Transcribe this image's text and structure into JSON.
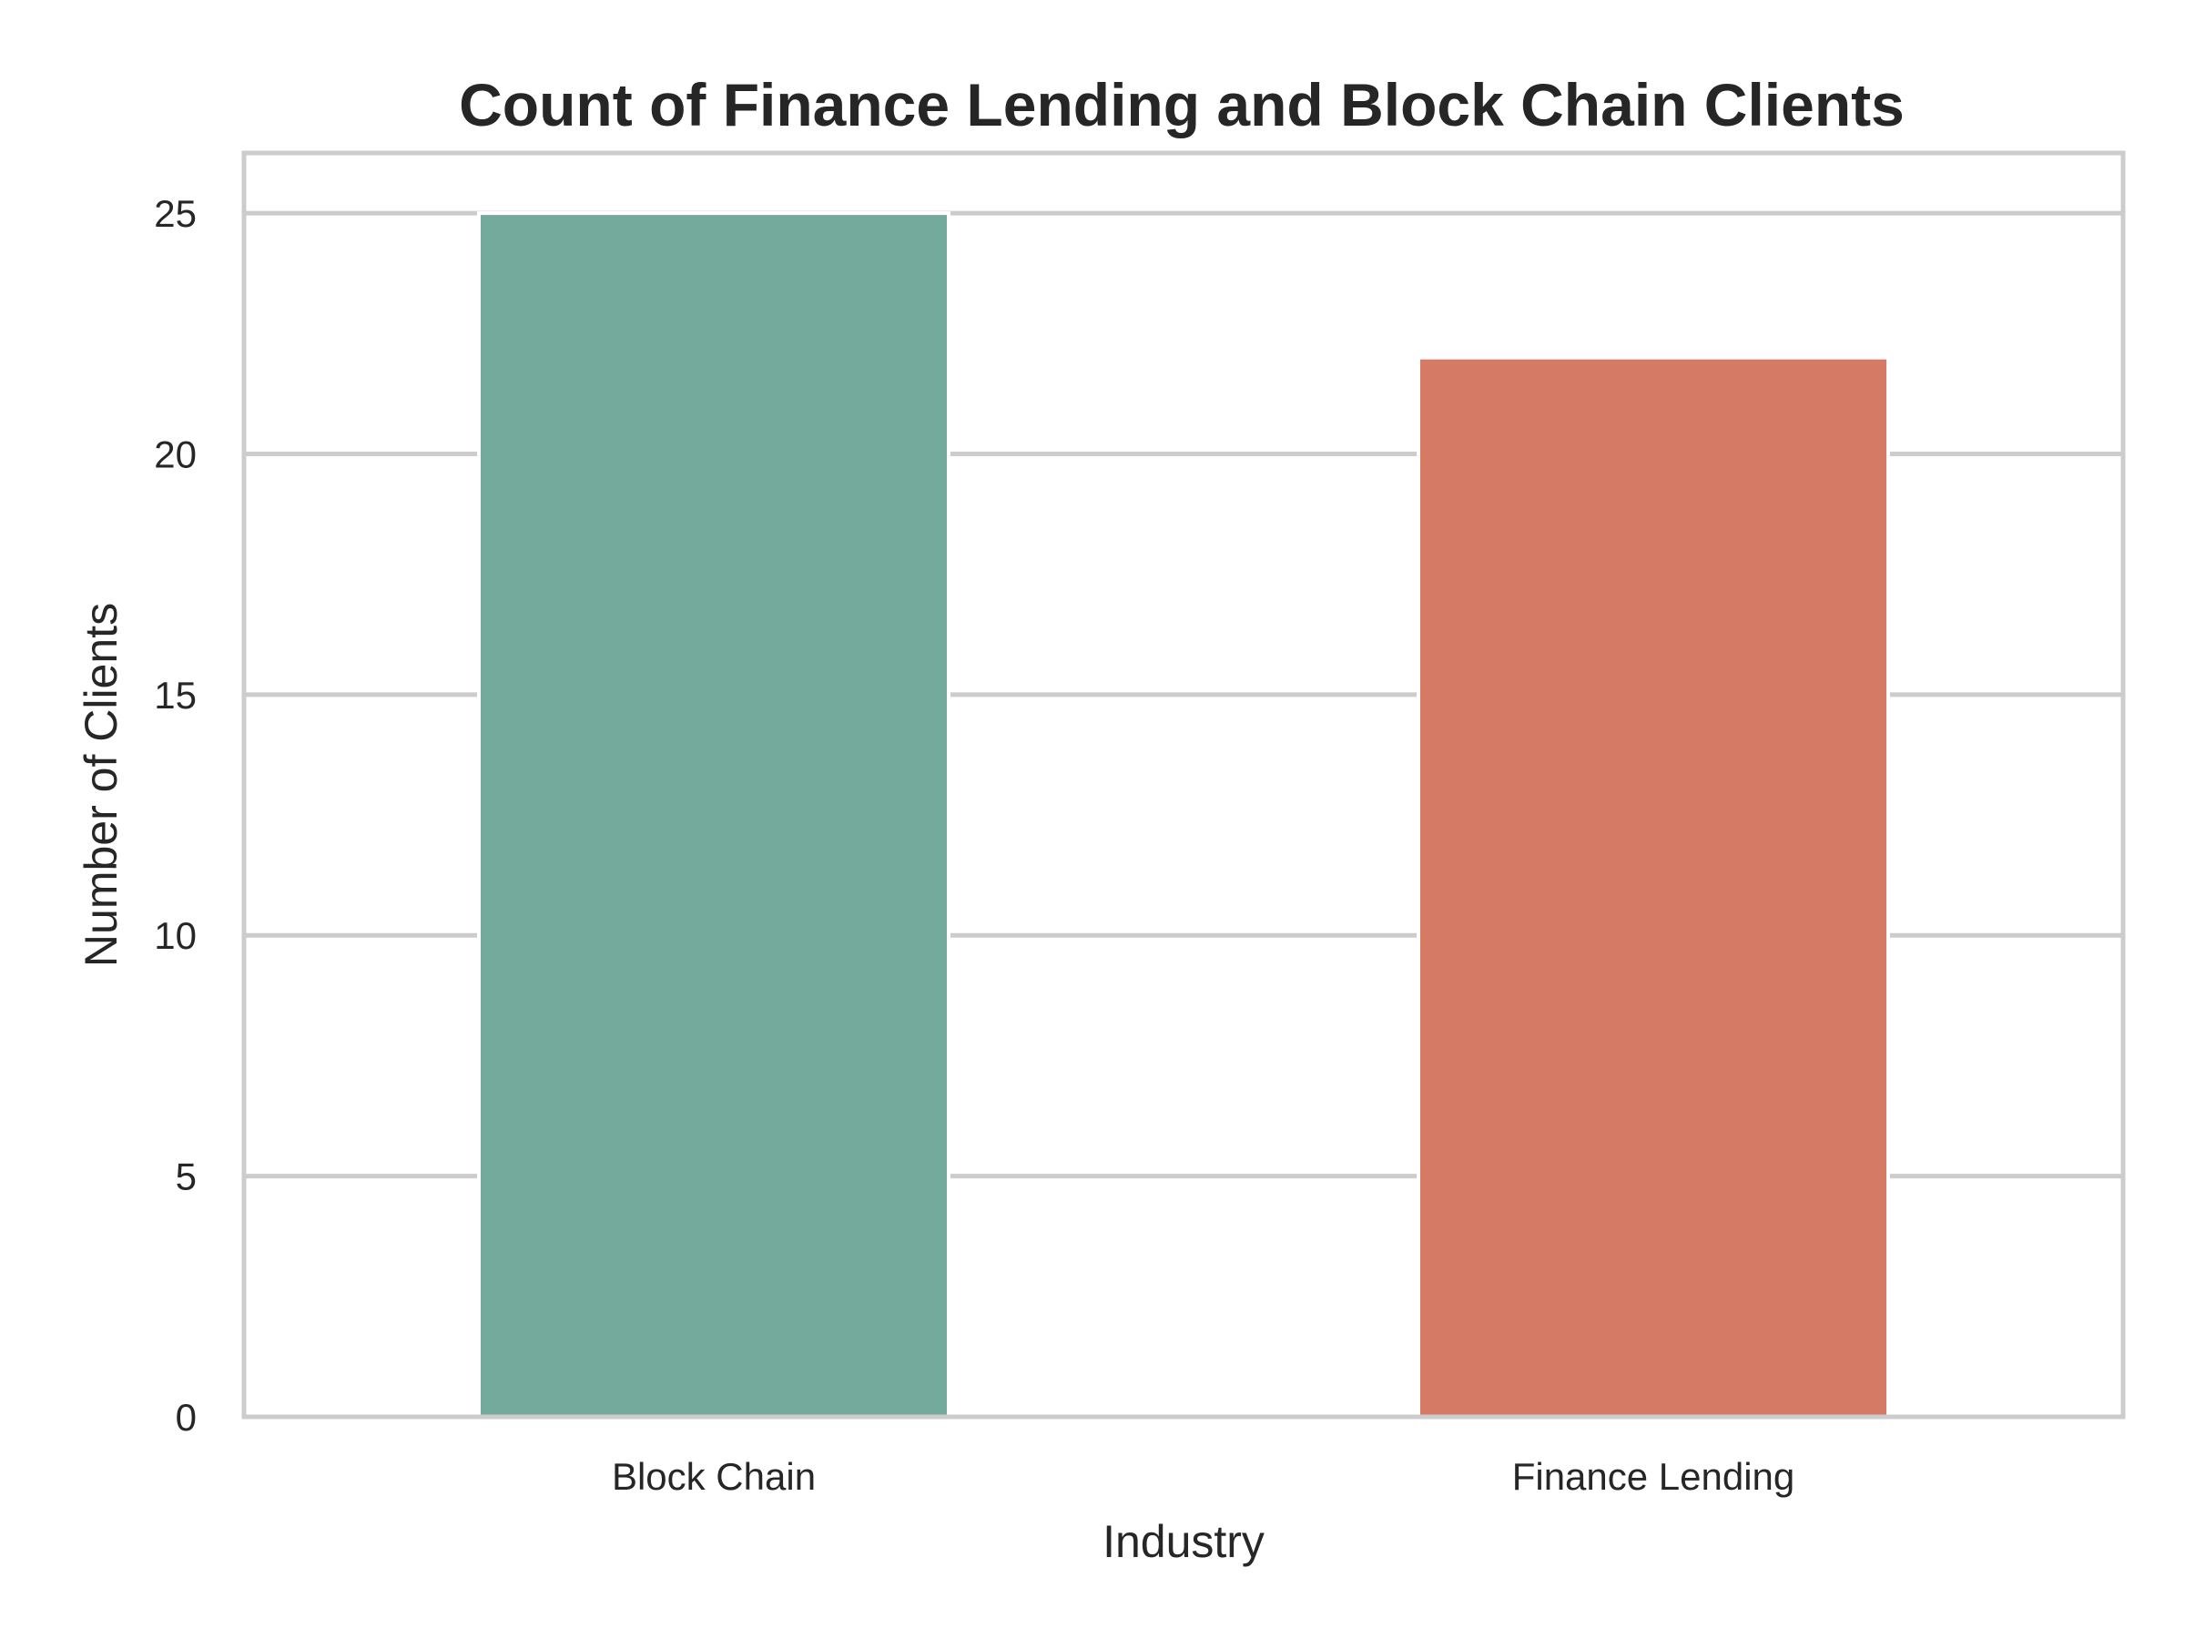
{
  "chart_data": {
    "type": "bar",
    "title": "Count of Finance Lending and Block Chain Clients",
    "xlabel": "Industry",
    "ylabel": "Number of Clients",
    "categories": [
      "Block Chain",
      "Finance Lending"
    ],
    "values": [
      25,
      22
    ],
    "colors": [
      "#73aa9c",
      "#d47a65"
    ],
    "ylim": [
      0,
      26.25
    ],
    "yticks": [
      0,
      5,
      10,
      15,
      20,
      25
    ],
    "grid": true,
    "grid_axis": "y",
    "grid_color": "#cccccc",
    "legend": "none"
  }
}
